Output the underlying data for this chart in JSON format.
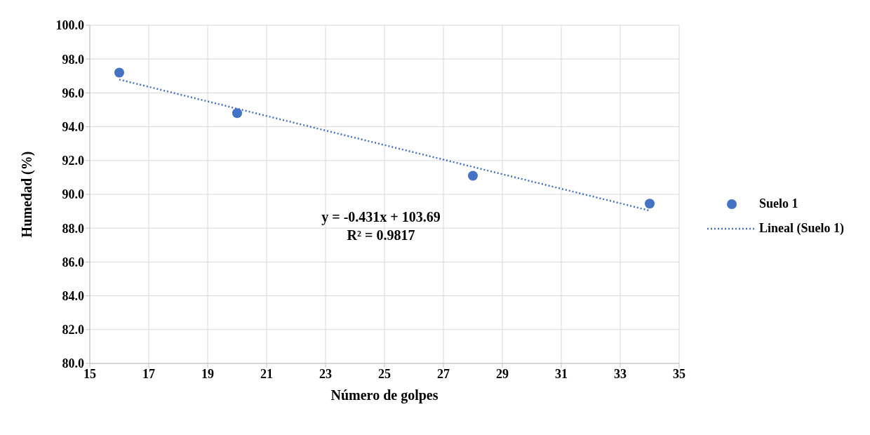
{
  "chart_data": {
    "type": "scatter",
    "xlabel": "Número de golpes",
    "ylabel": "Humedad (%)",
    "xlim": [
      15,
      35
    ],
    "xticks": [
      15,
      17,
      19,
      21,
      23,
      25,
      27,
      29,
      31,
      33,
      35
    ],
    "ylim": [
      80,
      100
    ],
    "yticks": [
      {
        "value": 80,
        "label": "80.0"
      },
      {
        "value": 82,
        "label": "82.0"
      },
      {
        "value": 84,
        "label": "84.0"
      },
      {
        "value": 86,
        "label": "86.0"
      },
      {
        "value": 88,
        "label": "88.0"
      },
      {
        "value": 90,
        "label": "90.0"
      },
      {
        "value": 92,
        "label": "92.0"
      },
      {
        "value": 94,
        "label": "94.0"
      },
      {
        "value": 96,
        "label": "96.0"
      },
      {
        "value": 98,
        "label": "98.0"
      },
      {
        "value": 100,
        "label": "100.0"
      }
    ],
    "grid": true,
    "legend": "right",
    "series": [
      {
        "name": "Suelo 1",
        "color": "#4472c4",
        "marker": "circle",
        "x": [
          16,
          20,
          28,
          34
        ],
        "values": [
          97.2,
          94.8,
          91.1,
          89.45
        ]
      },
      {
        "name": "Lineal (Suelo 1)",
        "type": "line",
        "color": "#4472c4",
        "line_style": "dotted",
        "marker": "none",
        "x": [
          16,
          34
        ],
        "values": [
          96.79,
          89.04
        ]
      }
    ],
    "annotations": [
      "y = -0.431x + 103.69",
      "R² = 0.9817"
    ]
  }
}
